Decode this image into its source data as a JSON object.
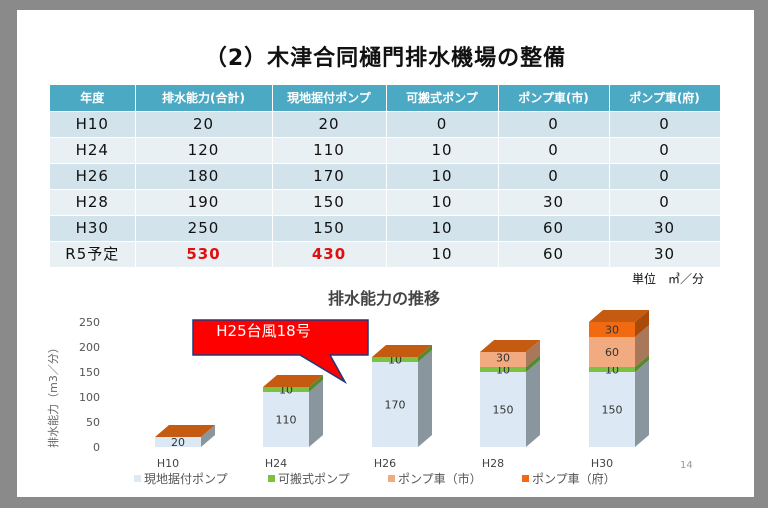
{
  "title": "（2）木津合同樋門排水機場の整備",
  "table": {
    "headers": [
      "年度",
      "排水能力(合計)",
      "現地据付ポンプ",
      "可搬式ポンプ",
      "ポンプ車(市)",
      "ポンプ車(府)"
    ],
    "rows": [
      [
        "H10",
        "20",
        "20",
        "0",
        "0",
        "0"
      ],
      [
        "H24",
        "120",
        "110",
        "10",
        "0",
        "0"
      ],
      [
        "H26",
        "180",
        "170",
        "10",
        "0",
        "0"
      ],
      [
        "H28",
        "190",
        "150",
        "10",
        "30",
        "0"
      ],
      [
        "H30",
        "250",
        "150",
        "10",
        "60",
        "30"
      ],
      [
        "R5予定",
        "530",
        "430",
        "10",
        "60",
        "30"
      ]
    ],
    "highlight_color": "#e01010",
    "unit": "単位　㎥／分"
  },
  "callout": "H25台風18号",
  "page_number": "14",
  "chart_data": {
    "type": "bar",
    "stacked": true,
    "style": "3d",
    "title": "排水能力の推移",
    "ylabel": "排水能力（m3／分）",
    "xlabel": "",
    "ylim": [
      0,
      250
    ],
    "yticks": [
      "0",
      "50",
      "100",
      "150",
      "200",
      "250"
    ],
    "grid": false,
    "legend": "bottom",
    "categories": [
      "H10",
      "H24",
      "H26",
      "H28",
      "H30"
    ],
    "series": [
      {
        "name": "現地据付ポンプ",
        "values": [
          20,
          110,
          170,
          150,
          150
        ],
        "color": "#dce9f5"
      },
      {
        "name": "可搬式ポンプ",
        "values": [
          0,
          10,
          10,
          10,
          10
        ],
        "color": "#7cc242"
      },
      {
        "name": "ポンプ車（市）",
        "values": [
          0,
          0,
          0,
          30,
          60
        ],
        "color": "#f2aa80"
      },
      {
        "name": "ポンプ車（府）",
        "values": [
          0,
          0,
          0,
          0,
          30
        ],
        "color": "#f26a10"
      }
    ]
  }
}
